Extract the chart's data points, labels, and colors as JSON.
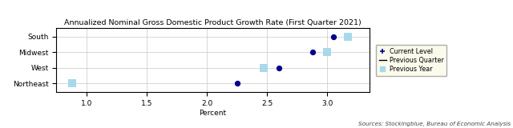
{
  "title": "Annualized Nominal Gross Domestic Product Growth Rate (First Quarter 2021)",
  "xlabel": "Percent",
  "source": "Sources: Stockingblue, Bureau of Economic Analysis",
  "regions": [
    "South",
    "Midwest",
    "West",
    "Northeast"
  ],
  "current_level": [
    3.05,
    2.88,
    2.6,
    2.25
  ],
  "previous_year": [
    3.17,
    3.0,
    2.47,
    0.88
  ],
  "dot_color": "#00008B",
  "square_color": "#A8D8EA",
  "xlim": [
    0.75,
    3.35
  ],
  "xticks": [
    1.0,
    1.5,
    2.0,
    2.5,
    3.0
  ],
  "legend_bg": "#FAFAE8",
  "bg_color": "#FFFFFF",
  "grid_color": "#C8C8C8"
}
